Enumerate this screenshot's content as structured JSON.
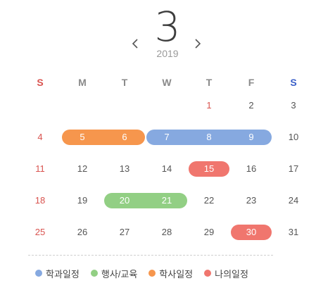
{
  "header": {
    "month": "3",
    "year": "2019",
    "prev_icon": "chevron-left-icon",
    "next_icon": "chevron-right-icon"
  },
  "weekdays": [
    "S",
    "M",
    "T",
    "W",
    "T",
    "F",
    "S"
  ],
  "weeks": [
    [
      "",
      "",
      "",
      "",
      "1",
      "2",
      "3"
    ],
    [
      "4",
      "5",
      "6",
      "7",
      "8",
      "9",
      "10"
    ],
    [
      "11",
      "12",
      "13",
      "14",
      "15",
      "16",
      "17"
    ],
    [
      "18",
      "19",
      "20",
      "21",
      "22",
      "23",
      "24"
    ],
    [
      "25",
      "26",
      "27",
      "28",
      "29",
      "30",
      "31"
    ]
  ],
  "events": [
    {
      "category": "학사일정",
      "start": 5,
      "end": 6
    },
    {
      "category": "학과일정",
      "start": 7,
      "end": 9
    },
    {
      "category": "나의일정",
      "start": 15,
      "end": 15
    },
    {
      "category": "행사/교육",
      "start": 20,
      "end": 21
    },
    {
      "category": "나의일정",
      "start": 30,
      "end": 30
    }
  ],
  "legend": [
    {
      "label": "학과일정",
      "color": "#86a9e0"
    },
    {
      "label": "행사/교육",
      "color": "#92cf84"
    },
    {
      "label": "학사일정",
      "color": "#f6964d"
    },
    {
      "label": "나의일정",
      "color": "#f0766e"
    }
  ],
  "colors": {
    "sunday": "#d9534f",
    "saturday": "#3a5fc8",
    "text": "#555555"
  }
}
